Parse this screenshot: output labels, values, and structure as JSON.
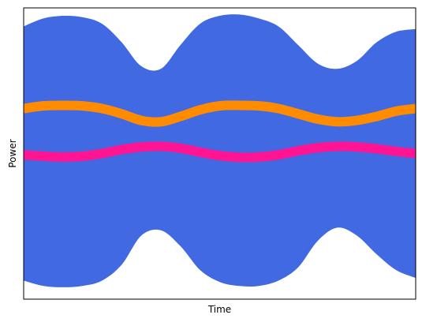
{
  "chart_data": {
    "type": "area",
    "title": "",
    "xlabel": "Time",
    "ylabel": "Power",
    "xlim": [
      0,
      1
    ],
    "ylim": [
      -0.1,
      1.0
    ],
    "ticks_shown": false,
    "grid": false,
    "legend": "none",
    "series": [
      {
        "kind": "band",
        "color": "#4169E1",
        "x": [
          0.0,
          0.05,
          0.1,
          0.15,
          0.2,
          0.25,
          0.3,
          0.35,
          0.4,
          0.45,
          0.5,
          0.55,
          0.6,
          0.65,
          0.7,
          0.75,
          0.8,
          0.85,
          0.9,
          0.95,
          1.0
        ],
        "upper": [
          0.93,
          0.96,
          0.97,
          0.965,
          0.94,
          0.87,
          0.78,
          0.77,
          0.86,
          0.94,
          0.97,
          0.975,
          0.96,
          0.93,
          0.86,
          0.79,
          0.77,
          0.8,
          0.87,
          0.91,
          0.92
        ],
        "lower": [
          -0.03,
          -0.05,
          -0.055,
          -0.05,
          -0.03,
          0.03,
          0.14,
          0.16,
          0.1,
          0.01,
          -0.035,
          -0.05,
          -0.05,
          -0.03,
          0.02,
          0.12,
          0.17,
          0.14,
          0.07,
          0.01,
          -0.02
        ]
      },
      {
        "kind": "line",
        "color": "#FF8C00",
        "x": [
          0.0,
          0.05,
          0.1,
          0.15,
          0.2,
          0.25,
          0.3,
          0.35,
          0.4,
          0.45,
          0.5,
          0.55,
          0.6,
          0.65,
          0.7,
          0.75,
          0.8,
          0.85,
          0.9,
          0.95,
          1.0
        ],
        "y": [
          0.62,
          0.63,
          0.632,
          0.63,
          0.62,
          0.6,
          0.575,
          0.57,
          0.59,
          0.615,
          0.63,
          0.632,
          0.63,
          0.62,
          0.6,
          0.58,
          0.57,
          0.575,
          0.59,
          0.61,
          0.62
        ]
      },
      {
        "kind": "line",
        "color": "#FF1493",
        "x": [
          0.0,
          0.05,
          0.1,
          0.15,
          0.2,
          0.25,
          0.3,
          0.35,
          0.4,
          0.45,
          0.5,
          0.55,
          0.6,
          0.65,
          0.7,
          0.75,
          0.8,
          0.85,
          0.9,
          0.95,
          1.0
        ],
        "y": [
          0.445,
          0.44,
          0.437,
          0.44,
          0.45,
          0.465,
          0.475,
          0.477,
          0.47,
          0.455,
          0.442,
          0.436,
          0.437,
          0.445,
          0.46,
          0.472,
          0.477,
          0.475,
          0.468,
          0.458,
          0.45
        ]
      }
    ]
  }
}
